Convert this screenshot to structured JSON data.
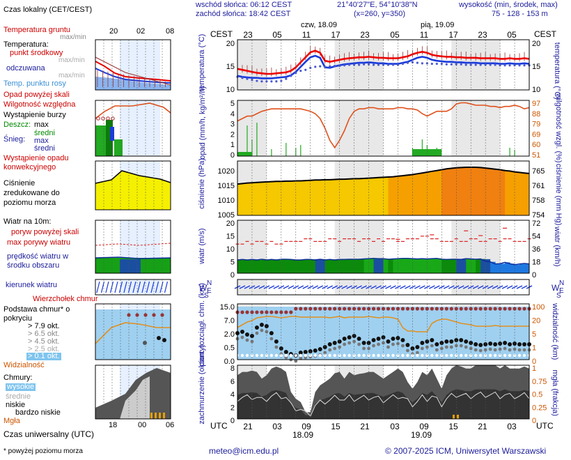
{
  "header": {
    "sunrise": "wschód słońca: 06:12 CEST",
    "sunset": "zachód słońca: 18:42 CEST",
    "coords": "21°40'27\"E, 54°10'38\"N",
    "grid": "(x=260, y=350)",
    "altitude_label": "wysokość (min, środek, max)",
    "altitude_values": "75 - 128 - 153 m"
  },
  "footer": {
    "note": "* powyżej poziomu morza",
    "email": "meteo@icm.edu.pl",
    "copyright": "© 2007-2025 ICM, Uniwersytet Warszawski",
    "utc_label": "Czas uniwersalny (UTC)"
  },
  "legend": {
    "time_title": "Czas lokalny (CET/CEST)",
    "time_ticks": [
      "20",
      "02",
      "08"
    ],
    "utc_ticks": [
      "18",
      "00",
      "06"
    ],
    "temp_soil": "Temperatura gruntu",
    "temp_soil_sub": "max/min",
    "temp_title": "Temperatura:",
    "temp_mid": "punkt środkowy",
    "temp_mid_sub": "max/min",
    "temp_feel": "odczuwana",
    "temp_feel_sub": "max/min",
    "temp_dew": "Temp. punktu rosy",
    "precip_above": "Opad powyżej skali",
    "rh": "Wilgotność względna",
    "storm": "Wystąpienie burzy",
    "rain": "Deszcz:",
    "rain_max": "max",
    "rain_avg": "średni",
    "snow": "Śnieg:",
    "snow_max": "max",
    "snow_avg": "średni",
    "conv": "Wystąpienie opadu konwekcyjnego",
    "pressure": "Ciśnienie zredukowane do poziomu morza",
    "wind_title": "Wiatr na 10m:",
    "gust_above": "poryw powyżej skali",
    "gust_max": "max porywy wiatru",
    "wind_speed": "prędkość wiatru w środku obszaru",
    "wind_dir": "kierunek wiatru",
    "cloud_base_note": "Wierzchołek chmur",
    "cloud_base": "Podstawa chmur* o pokryciu",
    "okt79": "> 7.9 okt.",
    "okt65": "> 6.5 okt.",
    "okt45": "> 4.5 okt.",
    "okt25": "> 2.5 okt.",
    "okt01": "> 0.1 okt.",
    "visibility": "Widzialność",
    "clouds": "Chmury:",
    "cl_high": "wysokie",
    "cl_mid": "średnie",
    "cl_low": "niskie",
    "cl_vlow": "bardzo niskie",
    "fog": "Mgła"
  },
  "axes": {
    "cest": "CEST",
    "utc": "UTC",
    "day1": "czw, 18.09",
    "day2": "pią, 19.09",
    "date1": "18.09",
    "date2": "19.09",
    "top_hours": [
      "23",
      "05",
      "11",
      "17",
      "23",
      "05",
      "11",
      "17",
      "23",
      "05"
    ],
    "bottom_hours": [
      "21",
      "03",
      "09",
      "15",
      "21",
      "03",
      "09",
      "15",
      "21",
      "03"
    ],
    "temp_left": "temperatura (°C)",
    "temp_right": "temperatura (°C)",
    "precip_left": "opad (mm/h, kg/m²/h)",
    "precip_right": "wilgotność wzgl. (%)",
    "press_left": "ciśnienie (hPa)",
    "press_right": "ciśnienie (mm Hg)",
    "wind_left": "wiatr (m/s)",
    "wind_right": "wiatr (km/h)",
    "cloud_left": "pion. rozciągł. chm. (km)",
    "cloud_right": "widzialność (km)",
    "cov_left": "zachmurzenie (oktanty)",
    "cov_right": "mgła (frakcja)",
    "ws_W": "W",
    "ws_S": "S",
    "ws_N": "N",
    "ws_E": "E"
  },
  "colors": {
    "temp": "#ee0000",
    "feel": "#1a3bdc",
    "dew": "#4a5ad0",
    "rh": "#e0501a",
    "rain": "#22aa22",
    "wind_green": "#1aa01a",
    "wind_blue": "#1e6ee0",
    "pressure_line": "#000000",
    "night": "#e8e8e8"
  },
  "chart_data": [
    {
      "type": "line",
      "name": "temperatura",
      "ylim": [
        10,
        20
      ],
      "ticks_left": [
        "20",
        "15",
        "10"
      ],
      "ticks_right": [
        "20",
        "15",
        "10"
      ],
      "x": [
        0,
        1,
        2,
        3,
        4,
        5,
        6,
        7,
        8,
        9,
        10,
        11,
        12,
        13,
        14,
        15,
        16,
        17,
        18,
        19,
        20,
        21,
        22,
        23,
        24,
        25,
        26,
        27,
        28,
        29,
        30,
        31,
        32,
        33,
        34,
        35,
        36,
        37,
        38,
        39,
        40,
        41,
        42,
        43,
        44,
        45,
        46,
        47,
        48,
        49,
        50,
        51,
        52,
        53,
        54,
        55,
        56,
        57,
        58,
        59,
        60
      ],
      "series": [
        {
          "values": [
            14.2,
            14.0,
            13.8,
            13.6,
            13.4,
            13.3,
            13.2,
            13.2,
            13.3,
            13.4,
            13.5,
            13.8,
            14.5,
            15.5,
            16.5,
            17.5,
            17.8,
            17.4,
            15.8,
            15.6,
            15.8,
            16.0,
            16.2,
            16.3,
            16.4,
            16.5,
            16.5,
            16.6,
            16.5,
            16.4,
            16.4,
            16.3,
            16.3,
            16.3,
            16.5,
            16.7,
            17.1,
            17.4,
            17.6,
            17.4,
            17.0,
            16.8,
            16.7,
            16.6,
            16.6,
            16.5,
            16.5,
            16.4,
            16.4,
            16.4,
            16.3,
            16.3,
            16.3,
            16.3,
            16.2,
            16.2,
            16.3,
            16.2,
            16.2,
            16.3,
            16.2
          ]
        },
        {
          "values": [
            12.8,
            12.6,
            12.5,
            12.4,
            12.4,
            12.3,
            12.3,
            12.3,
            12.4,
            12.5,
            12.6,
            12.9,
            13.6,
            14.6,
            15.6,
            16.5,
            16.8,
            16.4,
            14.5,
            14.4,
            14.7,
            14.9,
            15.1,
            15.2,
            15.3,
            15.4,
            15.4,
            15.5,
            15.4,
            15.3,
            15.3,
            15.2,
            15.2,
            15.2,
            15.4,
            15.6,
            16.0,
            16.4,
            16.6,
            16.4,
            16.0,
            15.8,
            15.7,
            15.6,
            15.6,
            15.5,
            15.5,
            15.4,
            15.4,
            15.4,
            15.3,
            15.3,
            15.3,
            15.3,
            15.2,
            15.2,
            15.3,
            15.2,
            15.2,
            15.3,
            15.2
          ]
        },
        {
          "values": [
            13.2,
            13.0,
            12.8,
            12.6,
            12.4,
            12.3,
            12.3,
            12.3,
            12.3,
            12.4,
            12.8,
            13.4,
            14.0,
            14.4,
            14.6,
            15.0,
            15.2,
            15.3,
            15.2,
            15.3,
            15.4,
            15.4,
            15.5,
            15.6,
            15.6,
            15.6,
            15.7,
            15.7,
            15.6,
            15.6,
            15.6,
            15.6,
            15.6,
            15.6,
            15.8,
            16.0,
            16.1,
            16.0,
            15.9,
            15.9,
            15.8,
            15.8,
            15.8,
            15.7,
            15.7,
            15.7,
            15.7,
            15.6,
            15.6,
            15.6,
            15.6,
            15.6,
            15.6,
            15.6,
            15.5,
            15.5,
            15.5,
            15.5,
            15.5,
            15.5,
            15.5
          ]
        }
      ]
    },
    {
      "type": "line",
      "name": "opad i wilgotność",
      "ylim": [
        0,
        5
      ],
      "ticks_left": [
        "5",
        "4",
        "3",
        "2",
        "1",
        "0"
      ],
      "ticks_right": [
        "97",
        "88",
        "79",
        "69",
        "60",
        "51"
      ],
      "x": [
        0,
        1,
        2,
        3,
        4,
        5,
        6,
        7,
        8,
        9,
        10,
        11,
        12,
        13,
        14,
        15,
        16,
        17,
        18,
        19,
        20,
        21,
        22,
        23,
        24,
        25,
        26,
        27,
        28,
        29,
        30,
        31,
        32,
        33,
        34,
        35,
        36,
        37,
        38,
        39,
        40,
        41,
        42,
        43,
        44,
        45,
        46,
        47,
        48,
        49,
        50,
        51,
        52,
        53,
        54,
        55,
        56,
        57,
        58,
        59,
        60
      ],
      "series": [
        {
          "values": [
            80,
            82,
            84,
            84,
            86,
            88,
            89,
            90,
            90,
            90,
            90,
            90,
            90,
            90,
            89,
            88,
            86,
            82,
            74,
            64,
            58,
            64,
            72,
            82,
            88,
            90,
            90,
            91,
            91,
            90,
            90,
            90,
            90,
            91,
            91,
            90,
            90,
            89,
            86,
            84,
            86,
            88,
            88,
            88,
            90,
            94,
            95,
            95,
            94,
            93,
            93,
            93,
            92,
            92,
            91,
            92,
            92,
            93,
            92,
            90,
            91
          ]
        },
        {
          "values": [
            0,
            0,
            0.05,
            0,
            0.1,
            0,
            0,
            0,
            0,
            0,
            0,
            0,
            0,
            0,
            0,
            0,
            0,
            0,
            0,
            0,
            0,
            0,
            0,
            0,
            0,
            0,
            0,
            0,
            0,
            0,
            0,
            0,
            0,
            0,
            0,
            0,
            0.1,
            0.1,
            0.2,
            0.1,
            0.15,
            0.1,
            0,
            0,
            0,
            0,
            0,
            0,
            0,
            0,
            0,
            0,
            0,
            0,
            0,
            0,
            0,
            0,
            0,
            0,
            0
          ]
        }
      ]
    },
    {
      "type": "area",
      "name": "ciśnienie",
      "ylim": [
        1005,
        1025
      ],
      "ticks_left": [
        "1020",
        "1015",
        "1010",
        "1005"
      ],
      "ticks_right": [
        "765",
        "761",
        "758",
        "754"
      ],
      "x": [
        0,
        1,
        2,
        3,
        4,
        5,
        6,
        7,
        8,
        9,
        10,
        11,
        12,
        13,
        14,
        15,
        16,
        17,
        18,
        19,
        20,
        21,
        22,
        23,
        24,
        25,
        26,
        27,
        28,
        29,
        30,
        31,
        32,
        33,
        34,
        35,
        36,
        37,
        38,
        39,
        40,
        41,
        42,
        43,
        44,
        45,
        46,
        47,
        48,
        49,
        50,
        51,
        52,
        53,
        54,
        55,
        56,
        57,
        58,
        59,
        60
      ],
      "values": [
        1016.5,
        1016.7,
        1016.9,
        1017.0,
        1017.1,
        1017.2,
        1017.3,
        1017.4,
        1017.5,
        1017.5,
        1017.6,
        1017.6,
        1017.7,
        1017.7,
        1017.8,
        1017.9,
        1018.0,
        1018.0,
        1018.1,
        1018.1,
        1018.2,
        1018.3,
        1018.3,
        1018.4,
        1018.5,
        1018.5,
        1018.6,
        1018.7,
        1018.8,
        1018.9,
        1019.0,
        1019.1,
        1019.2,
        1019.4,
        1019.6,
        1019.8,
        1020.0,
        1020.3,
        1020.6,
        1020.9,
        1021.2,
        1021.5,
        1021.8,
        1022.1,
        1022.3,
        1022.5,
        1022.6,
        1022.7,
        1022.7,
        1022.7,
        1022.6,
        1022.4,
        1022.2,
        1022.0,
        1021.8,
        1021.5,
        1021.3,
        1021.0,
        1020.8,
        1020.6,
        1020.4
      ]
    },
    {
      "type": "line",
      "name": "wiatr",
      "ylim": [
        0,
        20
      ],
      "ticks_left": [
        "20",
        "15",
        "10",
        "5",
        "0"
      ],
      "ticks_right": [
        "72",
        "54",
        "36",
        "18",
        "0"
      ],
      "x": [
        0,
        1,
        2,
        3,
        4,
        5,
        6,
        7,
        8,
        9,
        10,
        11,
        12,
        13,
        14,
        15,
        16,
        17,
        18,
        19,
        20,
        21,
        22,
        23,
        24,
        25,
        26,
        27,
        28,
        29,
        30,
        31,
        32,
        33,
        34,
        35,
        36,
        37,
        38,
        39,
        40,
        41,
        42,
        43,
        44,
        45,
        46,
        47,
        48,
        49,
        50,
        51,
        52,
        53,
        54,
        55,
        56,
        57,
        58,
        59,
        60
      ],
      "series": [
        {
          "values": [
            11,
            11,
            12,
            11,
            12,
            12,
            11,
            12,
            11,
            11,
            12,
            12,
            12,
            12,
            13,
            13,
            12,
            12,
            12,
            13,
            13,
            12,
            13,
            13,
            13,
            12,
            13,
            13,
            12,
            13,
            12,
            13,
            13,
            12,
            12,
            13,
            13,
            13,
            14,
            14,
            13,
            13,
            12,
            12,
            12,
            13,
            12,
            12,
            13,
            13,
            12,
            12,
            13,
            13,
            12,
            13,
            13,
            12,
            12,
            12,
            13
          ]
        },
        {
          "values": [
            5,
            5.2,
            5,
            5.2,
            5,
            5.3,
            5,
            5.2,
            5,
            5.3,
            5.3,
            5.2,
            5,
            5,
            5.2,
            5.2,
            5,
            5.3,
            5,
            5.2,
            5,
            5.2,
            5.2,
            5.3,
            5.3,
            5.3,
            5.4,
            5.5,
            5.6,
            5.5,
            5.5,
            5.3,
            5.4,
            5.5,
            5.6,
            5.6,
            5.5,
            5.4,
            5.5,
            5.4,
            5.5,
            5.6,
            5.3,
            5.2,
            5.3,
            5.3,
            5.2,
            5.5,
            5.4,
            5.3,
            5.4,
            4.5,
            4.3,
            3.5,
            3.6,
            4.1,
            3.6,
            3.2,
            3.5,
            3.7,
            3.5
          ]
        }
      ]
    },
    {
      "type": "line",
      "name": "chmury i widzialność",
      "ylim": [
        0,
        15
      ],
      "ticks_left": [
        "15.0",
        "7.0",
        "2.0",
        "0.5",
        "0.0"
      ],
      "ticks_right": [
        "100",
        "20",
        "5",
        "1",
        "0"
      ],
      "series": []
    },
    {
      "type": "area",
      "name": "zachmurzenie",
      "ylim": [
        0,
        8
      ],
      "ticks_left": [
        "8",
        "6",
        "4",
        "2",
        "0"
      ],
      "ticks_right": [
        "1",
        "0.75",
        "0.5",
        "0.25",
        "0"
      ],
      "x": [
        0,
        1,
        2,
        3,
        4,
        5,
        6,
        7,
        8,
        9,
        10,
        11,
        12,
        13,
        14,
        15,
        16,
        17,
        18,
        19,
        20,
        21,
        22,
        23,
        24,
        25,
        26,
        27,
        28,
        29,
        30,
        31,
        32,
        33,
        34,
        35,
        36,
        37,
        38,
        39,
        40,
        41,
        42,
        43,
        44,
        45,
        46,
        47,
        48,
        49,
        50,
        51,
        52,
        53,
        54,
        55,
        56,
        57,
        58,
        59,
        60
      ],
      "values": [
        6.5,
        7,
        7,
        7.2,
        7,
        6,
        6.5,
        7.5,
        7.8,
        7.5,
        7,
        4,
        3,
        2.5,
        1,
        1,
        4,
        5,
        5.5,
        6,
        6.8,
        7,
        6,
        7,
        6.5,
        6.7,
        6.8,
        7,
        7,
        6.5,
        6,
        6.5,
        7,
        7.5,
        7,
        5.5,
        4.5,
        5.5,
        7,
        6.5,
        7.5,
        6,
        4.5,
        6.5,
        7.5,
        8,
        7.8,
        7.5,
        7.5,
        8,
        8,
        8,
        8,
        8,
        7.5,
        8,
        7.5,
        7.5,
        7.5,
        7.8,
        7.5
      ]
    }
  ]
}
